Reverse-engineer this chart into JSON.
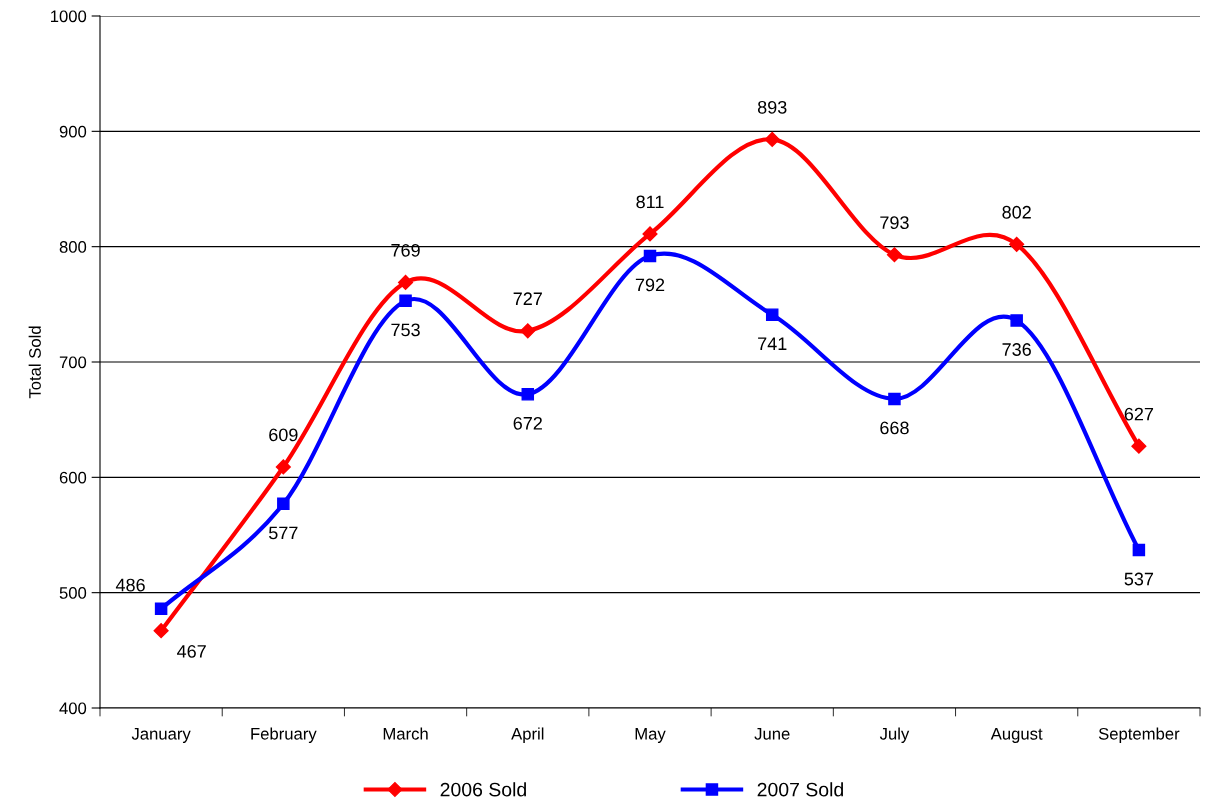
{
  "chart_data": {
    "type": "line",
    "ylabel": "Total Sold",
    "categories": [
      "January",
      "February",
      "March",
      "April",
      "May",
      "June",
      "July",
      "August",
      "September"
    ],
    "series": [
      {
        "name": "2006 Sold",
        "color": "#ff0000",
        "marker": "diamond",
        "values": [
          467,
          609,
          769,
          727,
          811,
          893,
          793,
          802,
          627
        ]
      },
      {
        "name": "2007 Sold",
        "color": "#0000ff",
        "marker": "square",
        "values": [
          486,
          577,
          753,
          672,
          792,
          741,
          668,
          736,
          537
        ]
      }
    ],
    "ylim": [
      400,
      1000
    ],
    "yticks": [
      400,
      500,
      600,
      700,
      800,
      900,
      1000
    ],
    "grid": "y",
    "legend": "bottom",
    "data_labels": true,
    "line_style": "solid"
  }
}
